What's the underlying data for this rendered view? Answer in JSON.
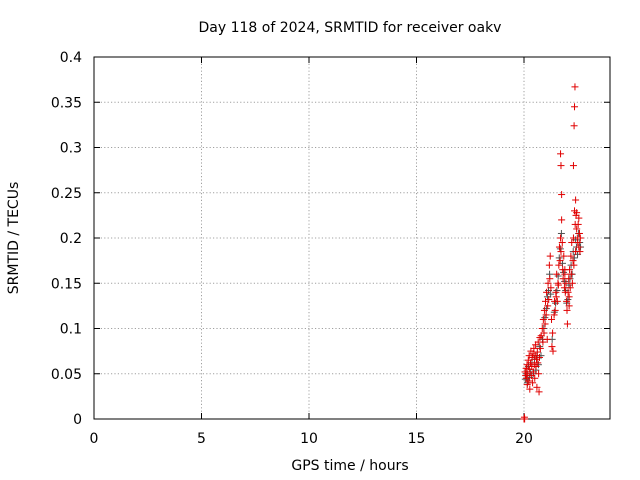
{
  "chart_data": {
    "type": "scatter",
    "title": "Day 118 of 2024, SRMTID for receiver oakv",
    "xlabel": "GPS time / hours",
    "ylabel": "SRMTID / TECUs",
    "xlim": [
      0,
      24
    ],
    "ylim": [
      0,
      0.4
    ],
    "xticks": [
      0,
      5,
      10,
      15,
      20
    ],
    "yticks": [
      0,
      0.05,
      0.1,
      0.15,
      0.2,
      0.25,
      0.3,
      0.35,
      0.4
    ],
    "ytick_labels": [
      "0",
      "0.05",
      "0.1",
      "0.15",
      "0.2",
      "0.25",
      "0.3",
      "0.35",
      "0.4"
    ],
    "grid": true,
    "legend": "none",
    "marker": "+",
    "colors": {
      "light": "#e00000",
      "dark": "#505050"
    },
    "series": [
      {
        "points": [
          [
            20.0,
            0.0
          ],
          [
            20.02,
            0.002
          ],
          [
            20.03,
            0.0
          ],
          [
            20.05,
            0.052
          ],
          [
            20.08,
            0.048
          ],
          [
            20.1,
            0.056
          ],
          [
            20.12,
            0.045
          ],
          [
            20.14,
            0.06
          ],
          [
            20.15,
            0.038
          ],
          [
            20.17,
            0.05
          ],
          [
            20.2,
            0.065
          ],
          [
            20.22,
            0.042
          ],
          [
            20.24,
            0.07
          ],
          [
            20.25,
            0.055
          ],
          [
            20.27,
            0.033
          ],
          [
            20.3,
            0.062
          ],
          [
            20.32,
            0.075
          ],
          [
            20.34,
            0.048
          ],
          [
            20.36,
            0.058
          ],
          [
            20.38,
            0.068
          ],
          [
            20.4,
            0.04
          ],
          [
            20.42,
            0.072
          ],
          [
            20.44,
            0.052
          ],
          [
            20.46,
            0.078
          ],
          [
            20.48,
            0.06
          ],
          [
            20.5,
            0.045
          ],
          [
            20.52,
            0.07
          ],
          [
            20.54,
            0.082
          ],
          [
            20.56,
            0.058
          ],
          [
            20.58,
            0.066
          ],
          [
            20.6,
            0.035
          ],
          [
            20.62,
            0.074
          ],
          [
            20.64,
            0.062
          ],
          [
            20.66,
            0.085
          ],
          [
            20.68,
            0.05
          ],
          [
            20.7,
            0.03
          ],
          [
            20.72,
            0.068
          ],
          [
            20.74,
            0.09
          ],
          [
            20.76,
            0.078
          ],
          [
            20.8,
            0.092
          ],
          [
            20.85,
            0.1
          ],
          [
            20.88,
            0.085
          ],
          [
            20.9,
            0.11
          ],
          [
            20.93,
            0.095
          ],
          [
            20.95,
            0.12
          ],
          [
            20.98,
            0.105
          ],
          [
            21.0,
            0.13
          ],
          [
            21.03,
            0.115
          ],
          [
            21.05,
            0.14
          ],
          [
            21.08,
            0.088
          ],
          [
            21.1,
            0.125
          ],
          [
            21.12,
            0.15
          ],
          [
            21.15,
            0.132
          ],
          [
            21.18,
            0.17
          ],
          [
            21.2,
            0.155
          ],
          [
            21.22,
            0.18
          ],
          [
            21.25,
            0.145
          ],
          [
            21.28,
            0.11
          ],
          [
            21.3,
            0.08
          ],
          [
            21.33,
            0.095
          ],
          [
            21.35,
            0.075
          ],
          [
            21.4,
            0.115
          ],
          [
            21.42,
            0.13
          ],
          [
            21.45,
            0.12
          ],
          [
            21.48,
            0.14
          ],
          [
            21.5,
            0.135
          ],
          [
            21.52,
            0.16
          ],
          [
            21.55,
            0.13
          ],
          [
            21.58,
            0.15
          ],
          [
            21.6,
            0.148
          ],
          [
            21.62,
            0.17
          ],
          [
            21.65,
            0.19
          ],
          [
            21.68,
            0.175
          ],
          [
            21.7,
            0.2
          ],
          [
            21.72,
            0.185
          ],
          [
            21.75,
            0.22
          ],
          [
            21.78,
            0.195
          ],
          [
            21.8,
            0.165
          ],
          [
            21.82,
            0.155
          ],
          [
            21.85,
            0.18
          ],
          [
            21.88,
            0.145
          ],
          [
            21.9,
            0.16
          ],
          [
            21.92,
            0.14
          ],
          [
            21.95,
            0.15
          ],
          [
            21.98,
            0.13
          ],
          [
            22.0,
            0.12
          ],
          [
            22.02,
            0.105
          ],
          [
            22.05,
            0.14
          ],
          [
            22.08,
            0.155
          ],
          [
            22.1,
            0.135
          ],
          [
            22.12,
            0.165
          ],
          [
            22.15,
            0.145
          ],
          [
            22.18,
            0.18
          ],
          [
            22.2,
            0.16
          ],
          [
            22.22,
            0.195
          ],
          [
            22.25,
            0.15
          ],
          [
            22.28,
            0.175
          ],
          [
            22.3,
            0.2
          ],
          [
            22.32,
            0.17
          ],
          [
            22.35,
            0.23
          ],
          [
            22.38,
            0.215
          ],
          [
            22.4,
            0.185
          ],
          [
            22.42,
            0.225
          ],
          [
            22.45,
            0.21
          ],
          [
            22.48,
            0.2
          ],
          [
            22.5,
            0.195
          ],
          [
            22.52,
            0.215
          ],
          [
            22.55,
            0.19
          ],
          [
            22.58,
            0.205
          ],
          [
            22.6,
            0.185
          ],
          [
            22.62,
            0.2
          ],
          [
            21.7,
            0.293
          ],
          [
            21.72,
            0.28
          ],
          [
            21.75,
            0.248
          ],
          [
            22.3,
            0.28
          ],
          [
            22.33,
            0.324
          ],
          [
            22.35,
            0.345
          ],
          [
            22.37,
            0.367
          ],
          [
            22.4,
            0.242
          ],
          [
            22.45,
            0.228
          ],
          [
            22.55,
            0.222
          ],
          [
            22.1,
            0.125
          ],
          [
            21.9,
            0.165
          ]
        ]
      },
      {
        "points": [
          [
            20.06,
            0.044
          ],
          [
            20.11,
            0.05
          ],
          [
            20.16,
            0.04
          ],
          [
            20.21,
            0.058
          ],
          [
            20.26,
            0.046
          ],
          [
            20.31,
            0.052
          ],
          [
            20.37,
            0.062
          ],
          [
            20.43,
            0.05
          ],
          [
            20.49,
            0.066
          ],
          [
            20.55,
            0.054
          ],
          [
            20.61,
            0.07
          ],
          [
            20.67,
            0.06
          ],
          [
            20.73,
            0.08
          ],
          [
            20.79,
            0.07
          ],
          [
            20.86,
            0.088
          ],
          [
            20.92,
            0.1
          ],
          [
            20.97,
            0.112
          ],
          [
            21.04,
            0.122
          ],
          [
            21.09,
            0.135
          ],
          [
            21.14,
            0.142
          ],
          [
            21.19,
            0.16
          ],
          [
            21.24,
            0.138
          ],
          [
            21.31,
            0.088
          ],
          [
            21.41,
            0.118
          ],
          [
            21.47,
            0.128
          ],
          [
            21.53,
            0.142
          ],
          [
            21.59,
            0.158
          ],
          [
            21.64,
            0.178
          ],
          [
            21.69,
            0.188
          ],
          [
            21.74,
            0.205
          ],
          [
            21.79,
            0.172
          ],
          [
            21.84,
            0.162
          ],
          [
            21.89,
            0.152
          ],
          [
            21.94,
            0.142
          ],
          [
            21.99,
            0.128
          ],
          [
            22.04,
            0.132
          ],
          [
            22.09,
            0.148
          ],
          [
            22.14,
            0.155
          ],
          [
            22.19,
            0.17
          ],
          [
            22.24,
            0.16
          ],
          [
            22.29,
            0.185
          ],
          [
            22.34,
            0.178
          ],
          [
            22.39,
            0.198
          ],
          [
            22.44,
            0.19
          ],
          [
            22.49,
            0.182
          ],
          [
            22.54,
            0.205
          ],
          [
            22.59,
            0.195
          ],
          [
            22.63,
            0.19
          ]
        ]
      }
    ]
  }
}
